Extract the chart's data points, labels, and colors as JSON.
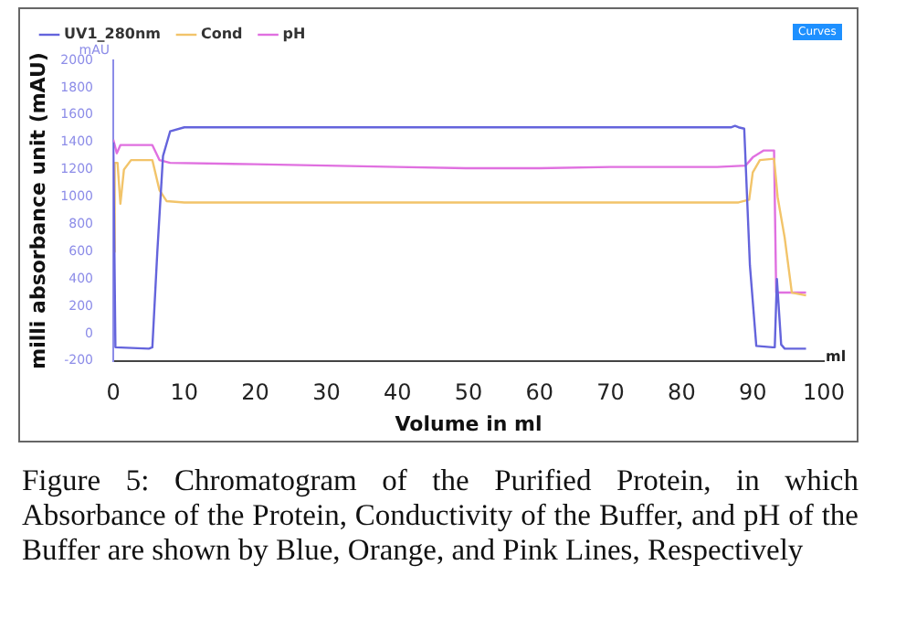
{
  "chart_data": {
    "type": "line",
    "xlabel": "Volume in ml",
    "ylabel": "milli absorbance unit (mAU)",
    "xlim": [
      0,
      100
    ],
    "xticks": [
      0,
      10,
      20,
      30,
      40,
      50,
      60,
      70,
      80,
      90,
      100
    ],
    "ylim": [
      -200,
      2000
    ],
    "yticks": [
      -200,
      0,
      200,
      400,
      600,
      800,
      1000,
      1200,
      1400,
      1600,
      1800,
      2000
    ],
    "grid": false,
    "legend": "top left",
    "marker": "none",
    "line_style": "solid",
    "annotations": [
      "mAU",
      "ml",
      "Curves",
      "Figure 5: Chromatogram of the Purified Protein, in which Absorbance of the Protein, Conductivity of the Buffer, and pH of the Buffer are shown by Blue, Orange, and Pink Lines, Respectively"
    ],
    "series": [
      {
        "name": "UV1_280nm",
        "color": "#6464dc",
        "x": [
          0,
          0.3,
          5,
          5.5,
          6.2,
          7,
          8,
          10,
          20,
          50,
          87,
          87.5,
          88,
          88.8,
          89.6,
          90.5,
          92.8,
          93.1,
          93.4,
          94,
          94.5,
          97.5
        ],
        "values": [
          1400,
          -100,
          -110,
          -100,
          600,
          1300,
          1480,
          1510,
          1510,
          1510,
          1510,
          1520,
          1510,
          1500,
          500,
          -90,
          -100,
          -100,
          400,
          -80,
          -110,
          -110
        ]
      },
      {
        "name": "Cond",
        "color": "#f2c46a",
        "x": [
          0,
          0.2,
          0.6,
          1,
          1.5,
          2.5,
          5.5,
          6.5,
          7.5,
          10,
          50,
          88,
          89.5,
          90,
          91,
          93,
          93.5,
          94.5,
          95.5,
          97.5
        ],
        "values": [
          600,
          1250,
          1250,
          950,
          1200,
          1270,
          1270,
          1050,
          970,
          960,
          960,
          960,
          980,
          1180,
          1270,
          1280,
          1000,
          700,
          300,
          280
        ]
      },
      {
        "name": "pH",
        "color": "#e070e0",
        "x": [
          0,
          0.5,
          1,
          5.5,
          6.5,
          8,
          20,
          40,
          50,
          60,
          70,
          85,
          89,
          89.5,
          90,
          91.5,
          93,
          93.3,
          94,
          97.5
        ],
        "values": [
          1420,
          1320,
          1380,
          1380,
          1270,
          1250,
          1240,
          1220,
          1210,
          1210,
          1220,
          1220,
          1230,
          1260,
          1290,
          1340,
          1340,
          300,
          300,
          300
        ]
      }
    ]
  }
}
